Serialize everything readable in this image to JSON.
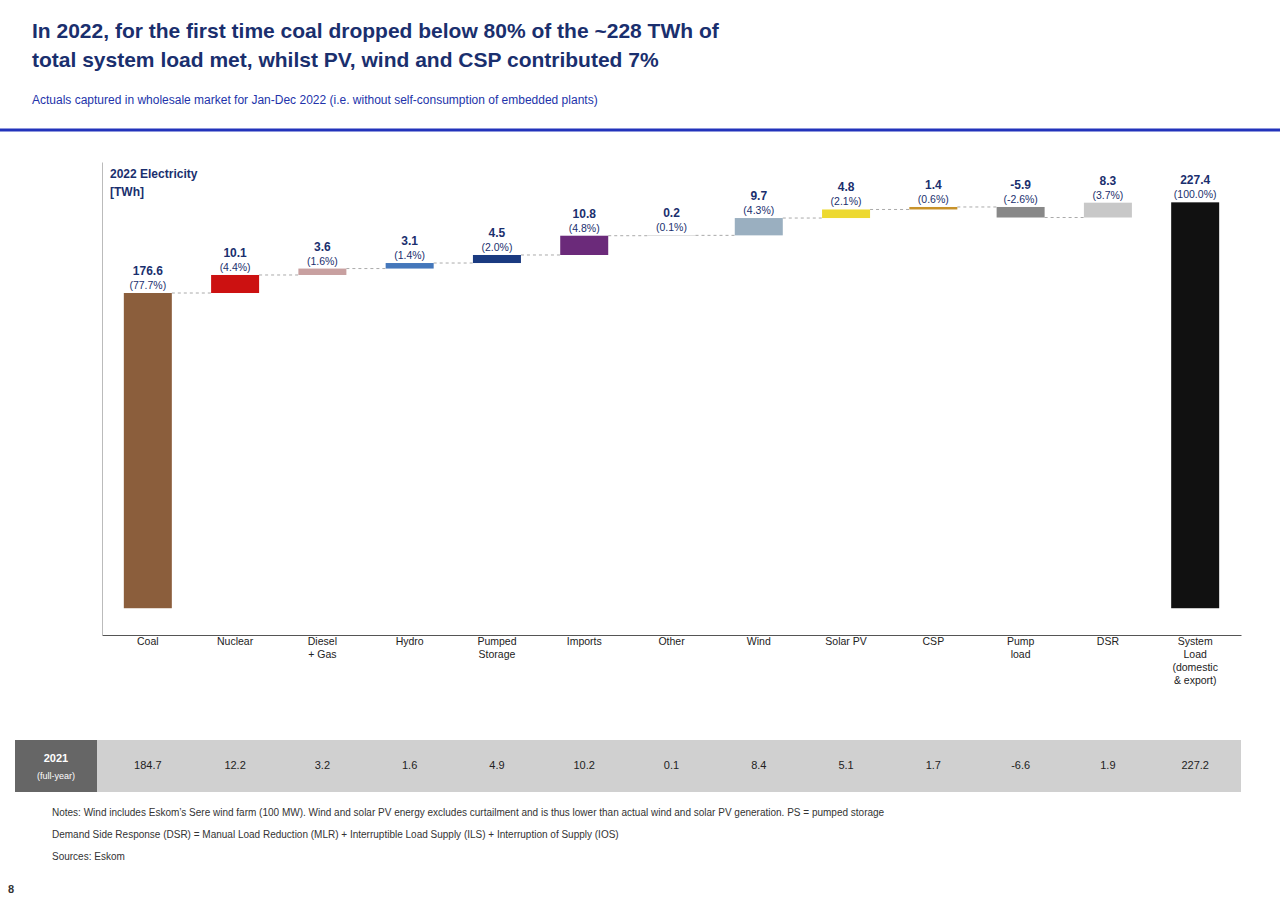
{
  "chart_data": {
    "type": "waterfall",
    "title": "In 2022, for the first time coal dropped below 80% of the ~228 TWh of\ntotal system load met, whilst PV, wind and CSP contributed 7%",
    "subtitle": "Actuals captured in wholesale market for Jan-Dec 2022 (i.e. without self-consumption of embedded plants)",
    "y_label": "2022 Electricity\n[TWh]",
    "categories": [
      "Coal",
      "Nuclear",
      "Diesel\n+ Gas",
      "Hydro",
      "Pumped\nStorage",
      "Imports",
      "Other",
      "Wind",
      "Solar PV",
      "CSP",
      "Pump\nload",
      "DSR",
      "System\nLoad\n(domestic\n& export)"
    ],
    "values": [
      176.6,
      10.1,
      3.6,
      3.1,
      4.5,
      10.8,
      0.2,
      9.7,
      4.8,
      1.4,
      -5.9,
      8.3,
      227.4
    ],
    "data_labels": true,
    "shares": [
      77.7,
      4.4,
      1.6,
      1.4,
      2.0,
      4.8,
      0.1,
      4.3,
      2.1,
      0.6,
      -2.6,
      3.7,
      100.0
    ],
    "share_labels": [
      "(77.7%)",
      "(4.4%)",
      "(1.6%)",
      "(1.4%)",
      "(2.0%)",
      "(4.8%)",
      "(0.1%)",
      "(4.3%)",
      "(2.1%)",
      "(0.6%)",
      "(-2.6%)",
      "(3.7%)",
      "(100.0%)"
    ],
    "colors": [
      "#8B5E3C",
      "#CC1111",
      "#C8A0A0",
      "#4477BB",
      "#1A3A80",
      "#6B2A7A",
      "#AAAAAA",
      "#9AAFC0",
      "#EDD930",
      "#C8922A",
      "#888888",
      "#C8C8C8",
      "#111111"
    ],
    "ylim": [
      -15,
      250
    ],
    "yticks": [],
    "tick_labels": "x",
    "grid": false,
    "comparison": {
      "name": "2021",
      "label": "(full-year)",
      "values": [
        184.7,
        12.2,
        3.2,
        1.6,
        4.9,
        10.2,
        0.1,
        8.4,
        5.1,
        1.7,
        -6.6,
        1.9,
        227.2
      ]
    },
    "notes": [
      "Notes: Wind includes Eskom’s Sere wind farm (100 MW). Wind and solar PV energy excludes curtailment and is thus lower than actual wind and solar PV generation. PS = pumped storage",
      "Demand Side Response (DSR) = Manual Load Reduction (MLR) + Interruptible Load Supply (ILS) + Interruption of Supply (IOS)",
      "Sources: Eskom"
    ],
    "page_label": "8"
  }
}
